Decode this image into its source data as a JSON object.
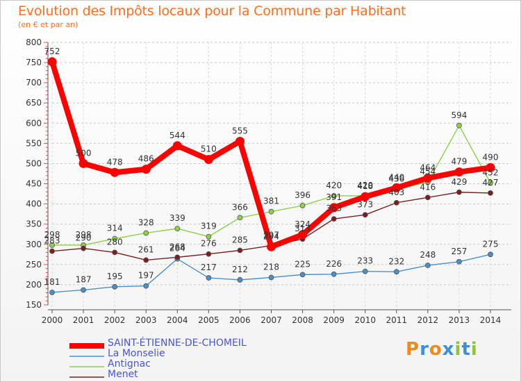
{
  "chart_data": {
    "type": "line",
    "title": "Evolution des Impôts locaux pour la Commune par Habitant",
    "subtitle": "(en € et par an)",
    "x": [
      2000,
      2001,
      2002,
      2003,
      2004,
      2005,
      2006,
      2007,
      2008,
      2009,
      2010,
      2011,
      2012,
      2013,
      2014
    ],
    "x_tick_labels": [
      "2000",
      "2001",
      "2002",
      "2003",
      "2004",
      "2005",
      "2006",
      "2007",
      "2008",
      "2009",
      "2010",
      "2011",
      "2012",
      "2013",
      "2014"
    ],
    "ylim": [
      150,
      800
    ],
    "y_ticks": [
      150,
      200,
      250,
      300,
      350,
      400,
      450,
      500,
      550,
      600,
      650,
      700,
      750,
      800
    ],
    "y_tick_labels": [
      "150",
      "200",
      "250",
      "300",
      "350",
      "400",
      "450",
      "500",
      "550",
      "600",
      "650",
      "700",
      "750",
      "800"
    ],
    "grid": "horizontal dashed",
    "legend_position": "bottom-left",
    "series": [
      {
        "name": "SAINT-ÉTIENNE-DE-CHOMEIL",
        "color": "#ff0000",
        "values": [
          752,
          500,
          478,
          486,
          544,
          510,
          555,
          294,
          324,
          391,
          418,
          440,
          464,
          479,
          490
        ],
        "labels": [
          "752",
          "500",
          "478",
          "486",
          "544",
          "510",
          "555",
          "294",
          "324",
          "391",
          "418",
          "440",
          "464",
          "479",
          "490"
        ]
      },
      {
        "name": "La Monselie",
        "color": "#4a90c8",
        "values": [
          181,
          187,
          195,
          197,
          264,
          217,
          212,
          218,
          225,
          226,
          233,
          232,
          248,
          257,
          275
        ],
        "labels": [
          "181",
          "187",
          "195",
          "197",
          "264",
          "217",
          "212",
          "218",
          "225",
          "226",
          "233",
          "232",
          "248",
          "257",
          "275"
        ]
      },
      {
        "name": "Antignac",
        "color": "#8fd04a",
        "values": [
          298,
          298,
          314,
          328,
          339,
          319,
          366,
          381,
          396,
          420,
          420,
          436,
          454,
          594,
          452
        ],
        "labels": [
          "298",
          "298",
          "314",
          "328",
          "339",
          "319",
          "366",
          "381",
          "396",
          "420",
          "420",
          "436",
          "454",
          "594",
          "452"
        ]
      },
      {
        "name": "Menet",
        "color": "#7a1e22",
        "values": [
          283,
          290,
          280,
          261,
          268,
          276,
          285,
          297,
          313,
          363,
          373,
          403,
          416,
          429,
          427
        ],
        "labels": [
          "283",
          "290",
          "280",
          "261",
          "268",
          "276",
          "285",
          "297",
          "313",
          "363",
          "373",
          "403",
          "416",
          "429",
          "427"
        ]
      }
    ]
  },
  "legend": {
    "items": [
      "SAINT-ÉTIENNE-DE-CHOMEIL",
      "La Monselie",
      "Antignac",
      "Menet"
    ]
  },
  "logo": {
    "text": "Proxiti",
    "letters": [
      "P",
      "r",
      "o",
      "x",
      "i",
      "t",
      "i"
    ]
  }
}
